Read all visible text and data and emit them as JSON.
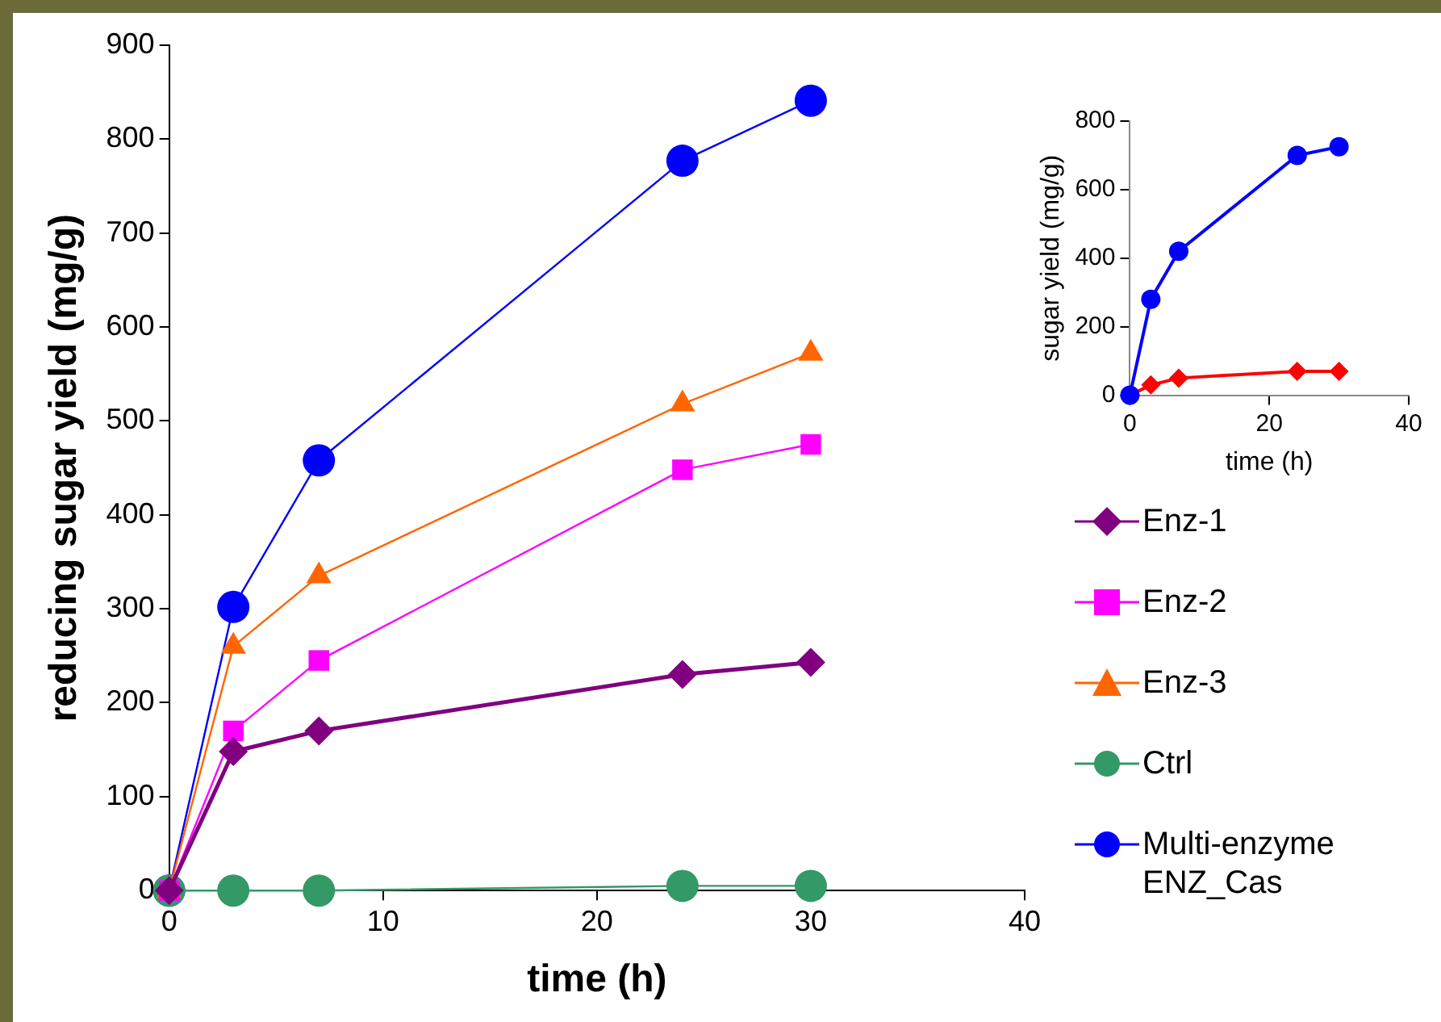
{
  "chart_data": [
    {
      "type": "line",
      "xlabel": "time (h)",
      "ylabel": "reducing sugar yield (mg/g)",
      "x": [
        0,
        3,
        7,
        24,
        30
      ],
      "xlim": [
        0,
        40
      ],
      "xticks": [
        0,
        10,
        20,
        30,
        40
      ],
      "ylim": [
        0,
        900
      ],
      "yticks": [
        0,
        100,
        200,
        300,
        400,
        500,
        600,
        700,
        800,
        900
      ],
      "grid": false,
      "legend": "right",
      "series": [
        {
          "name": "Enz-1",
          "color": "#800080",
          "marker": "diamond",
          "values": [
            0,
            148,
            170,
            230,
            243
          ]
        },
        {
          "name": "Enz-2",
          "color": "#ff00ff",
          "marker": "square",
          "values": [
            0,
            170,
            245,
            448,
            475
          ]
        },
        {
          "name": "Enz-3",
          "color": "#ff6600",
          "marker": "triangle",
          "values": [
            0,
            260,
            335,
            518,
            572
          ]
        },
        {
          "name": "Ctrl",
          "color": "#339966",
          "marker": "circle",
          "values": [
            0,
            0,
            0,
            5,
            5
          ]
        },
        {
          "name": "Multi-enzyme ENZ_Cas",
          "color": "#0000ff",
          "marker": "circle",
          "values": [
            0,
            302,
            458,
            777,
            841
          ]
        }
      ]
    },
    {
      "type": "line",
      "xlabel": "time (h)",
      "ylabel": "sugar yield (mg/g)",
      "x": [
        0,
        3,
        7,
        24,
        30
      ],
      "xlim": [
        0,
        40
      ],
      "xticks": [
        0,
        20,
        40
      ],
      "ylim": [
        0,
        800
      ],
      "yticks": [
        0,
        200,
        400,
        600,
        800
      ],
      "grid": false,
      "series": [
        {
          "color": "#0000ff",
          "marker": "circle",
          "values": [
            0,
            280,
            420,
            700,
            725
          ]
        },
        {
          "color": "#ff0000",
          "marker": "diamond",
          "values": [
            0,
            30,
            50,
            70,
            70
          ]
        }
      ]
    }
  ]
}
